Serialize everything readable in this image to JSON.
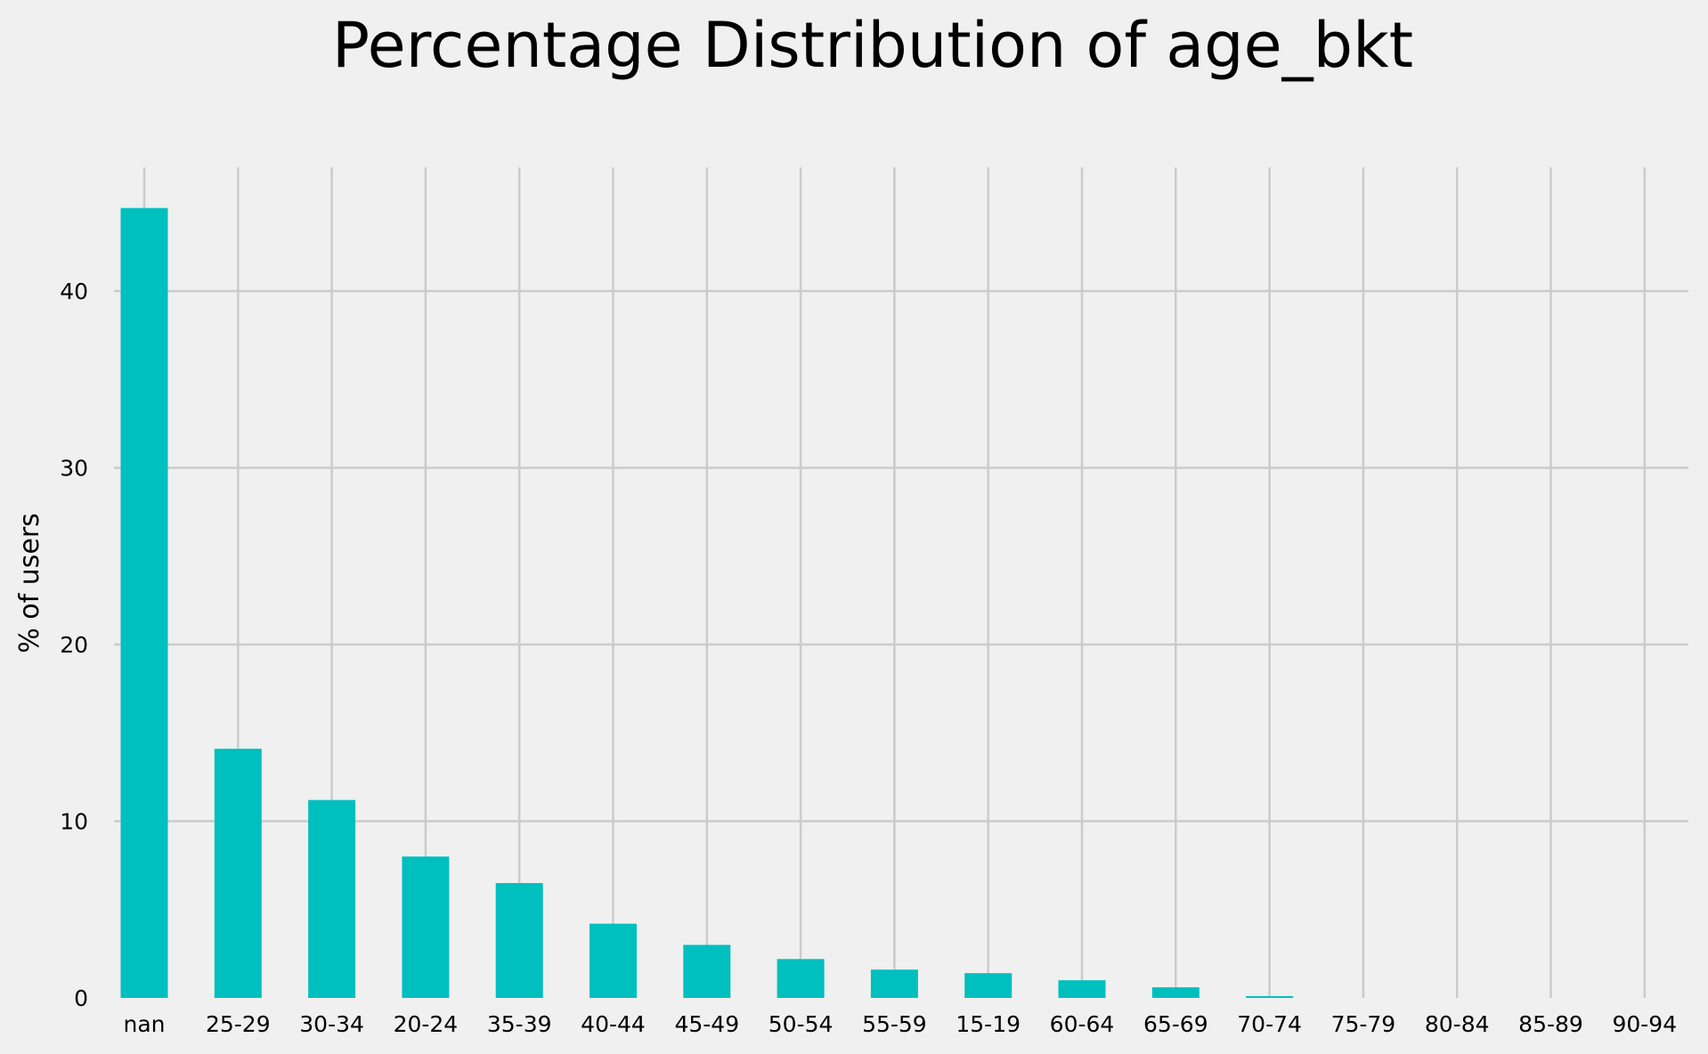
{
  "chart_data": {
    "type": "bar",
    "title": "Percentage Distribution of age_bkt",
    "xlabel": "",
    "ylabel": "% of users",
    "categories": [
      "nan",
      "25-29",
      "30-34",
      "20-24",
      "35-39",
      "40-44",
      "45-49",
      "50-54",
      "55-59",
      "15-19",
      "60-64",
      "65-69",
      "70-74",
      "75-79",
      "80-84",
      "85-89",
      "90-94"
    ],
    "values": [
      44.7,
      14.1,
      11.2,
      8.0,
      6.5,
      4.2,
      3.0,
      2.2,
      1.6,
      1.4,
      1.0,
      0.6,
      0.1,
      0.0,
      0.0,
      0.0,
      0.0
    ],
    "ylim": [
      0,
      47
    ],
    "yticks": [
      0,
      10,
      20,
      30,
      40
    ],
    "grid": true,
    "bar_color": "#00bfbf",
    "background_color": "#f0f0f0",
    "grid_color": "#cbcbcb"
  }
}
